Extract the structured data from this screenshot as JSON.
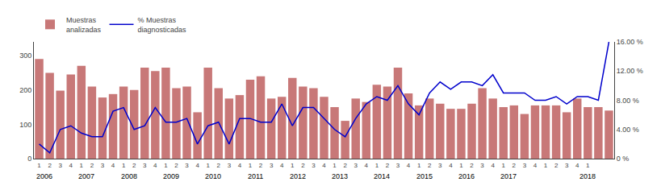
{
  "chart_data": {
    "type": "bar",
    "categories": [
      "1",
      "2",
      "3",
      "4",
      "1",
      "2",
      "3",
      "4",
      "1",
      "2",
      "3",
      "4",
      "1",
      "2",
      "3",
      "4",
      "1",
      "2",
      "3",
      "4",
      "1",
      "2",
      "3",
      "4",
      "1",
      "2",
      "3",
      "4",
      "1",
      "2",
      "3",
      "4",
      "1",
      "2",
      "3",
      "4",
      "1",
      "2",
      "3",
      "4",
      "1",
      "2",
      "3",
      "4",
      "1",
      "2",
      "3",
      "4",
      "1",
      "2",
      "3",
      "4",
      "1",
      null,
      null
    ],
    "series": [
      {
        "name": "Muestras\nanalizadas",
        "type": "bar",
        "color": "#c87878",
        "values": [
          290,
          250,
          198,
          245,
          270,
          210,
          178,
          188,
          210,
          200,
          265,
          255,
          265,
          205,
          210,
          135,
          265,
          205,
          175,
          185,
          230,
          240,
          175,
          180,
          235,
          210,
          205,
          180,
          150,
          110,
          175,
          165,
          215,
          210,
          265,
          190,
          155,
          175,
          160,
          145,
          145,
          160,
          205,
          175,
          150,
          155,
          130,
          155,
          155,
          155,
          135,
          175,
          150,
          150,
          140
        ]
      },
      {
        "name": "% Muestras\ndiagnosticadas",
        "type": "line",
        "color": "#0000cc",
        "axis": "y2",
        "values": [
          2.0,
          0.8,
          4.0,
          4.5,
          3.5,
          3.0,
          3.0,
          6.5,
          7.0,
          4.0,
          4.5,
          7.0,
          5.0,
          5.0,
          5.5,
          2.0,
          4.5,
          5.0,
          2.0,
          5.5,
          5.5,
          5.0,
          5.0,
          7.5,
          4.5,
          7.0,
          7.0,
          5.5,
          4.0,
          3.0,
          5.5,
          7.5,
          8.5,
          8.0,
          10.0,
          7.5,
          6.0,
          9.0,
          10.5,
          9.5,
          10.5,
          10.5,
          10.0,
          11.5,
          9.0,
          9.0,
          9.0,
          8.0,
          8.0,
          8.5,
          7.5,
          8.5,
          8.5,
          8.0,
          16.0
        ]
      }
    ],
    "ylim": [
      0,
      340
    ],
    "yticks": [
      0,
      100,
      200,
      300
    ],
    "y2lim": [
      0,
      16
    ],
    "y2ticks": [
      {
        "value": 0,
        "label": "0 %"
      },
      {
        "value": 4.0,
        "label": "4.00 %"
      },
      {
        "value": 8.0,
        "label": "8.00 %"
      },
      {
        "value": 12.0,
        "label": "12.00 %"
      },
      {
        "value": 16.0,
        "label": "16.00 %"
      }
    ],
    "annotations": [
      {
        "text": "2006",
        "x": 0.5
      },
      {
        "text": "2007",
        "x": 4.5
      },
      {
        "text": "2008",
        "x": 8.5
      },
      {
        "text": "2009",
        "x": 12.5
      },
      {
        "text": "2010",
        "x": 16.5
      },
      {
        "text": "2011",
        "x": 20.5
      },
      {
        "text": "2012",
        "x": 24.5
      },
      {
        "text": "2013",
        "x": 28.5
      },
      {
        "text": "2014",
        "x": 32.5
      },
      {
        "text": "2015",
        "x": 36.5
      },
      {
        "text": "2016",
        "x": 40.5
      },
      {
        "text": "2017",
        "x": 44.5
      },
      {
        "text": "2018",
        "x": 52
      }
    ],
    "grid": false,
    "legend": "upper left"
  }
}
